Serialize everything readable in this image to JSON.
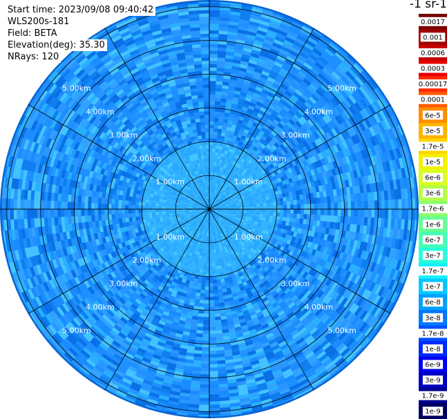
{
  "header": {
    "start_time": "Start time: 2023/09/08 09:40:42",
    "instrument": "WLS200s-181",
    "field": "Field: BETA",
    "elevation": "Elevation(deg): 35.30",
    "nrays": "NRays: 120"
  },
  "colorbar": {
    "title": "-1 sr-1",
    "labels": [
      "0.0017",
      "0.001",
      "0.0006",
      "0.0003",
      "0.00017",
      "0.0001",
      "6e-5",
      "3e-5",
      "1.7e-5",
      "1e-5",
      "6e-6",
      "3e-6",
      "1.7e-6",
      "1e-6",
      "6e-7",
      "3e-7",
      "1.7e-7",
      "1e-7",
      "6e-8",
      "3e-8",
      "1.7e-8",
      "1e-8",
      "6e-9",
      "3e-9",
      "1.7e-9",
      "1e-9"
    ],
    "colors": [
      "#7a0000",
      "#a00000",
      "#c80000",
      "#e60000",
      "#ff2a00",
      "#ff5a00",
      "#ff8c00",
      "#ffb400",
      "#ffd400",
      "#f2f200",
      "#d8ff1e",
      "#b4ff46",
      "#8cff6e",
      "#64ff96",
      "#46ffb4",
      "#28ffd8",
      "#14f0ff",
      "#00c8ff",
      "#00a0ff",
      "#0078ff",
      "#0050ff",
      "#0028ff",
      "#0000f0",
      "#0000c0",
      "#000090",
      "#000060"
    ]
  },
  "chart_data": {
    "type": "heatmap",
    "projection": "polar-ppi",
    "range_unit": "km",
    "range_rings": [
      1,
      2,
      3,
      4,
      5,
      6
    ],
    "ring_labels": [
      "1.00km",
      "2.00km",
      "3.00km",
      "4.00km",
      "5.00km"
    ],
    "radial_lines_deg": [
      0,
      30,
      60,
      90,
      120,
      150,
      180,
      210,
      240,
      270,
      300,
      330
    ],
    "max_range_km": 6.2,
    "field": "BETA",
    "elevation_deg": 35.3,
    "nrays": 120,
    "value_scale": "log",
    "value_range": [
      1e-09,
      0.0017
    ],
    "dominant_values": {
      "inner_0_2km": "1e-7",
      "outer_2_6km": "6e-8"
    }
  }
}
